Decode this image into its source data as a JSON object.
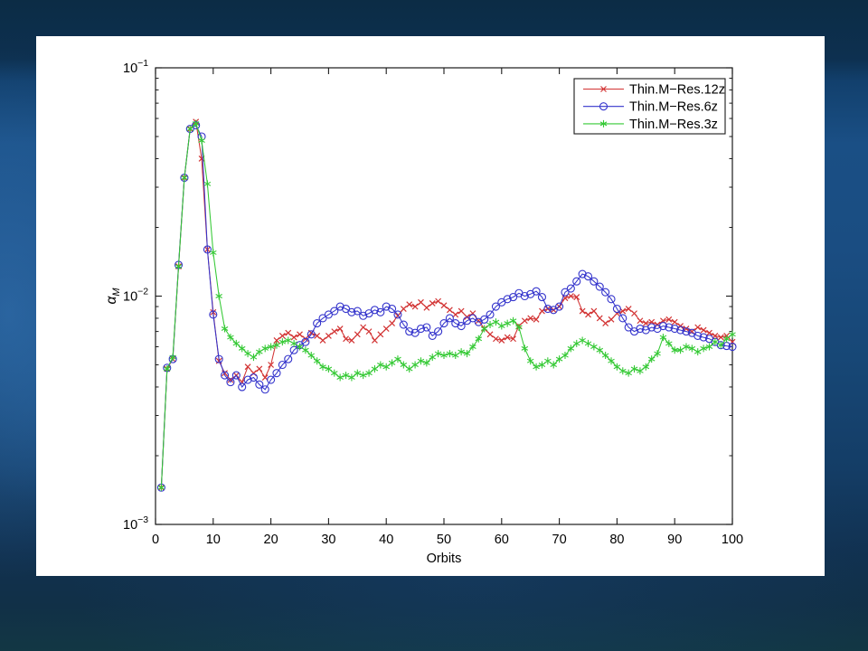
{
  "slide": {
    "background_colors": {
      "top_band": "#0c2c45",
      "upper_mid": "#1a4f85",
      "lower": "#113150",
      "bottom_edge": "#123744",
      "left_glow": "#3e82c8"
    },
    "panel_color": "#ffffff"
  },
  "chart_data": {
    "type": "line",
    "title": "",
    "xlabel": "Orbits",
    "ylabel": "alpha_M",
    "ylabel_letter": "α",
    "ylabel_sub": "M",
    "x_axis": {
      "label": "Orbits",
      "ticks": [
        "0",
        "10",
        "20",
        "30",
        "40",
        "50",
        "60",
        "70",
        "80",
        "90",
        "100"
      ],
      "tick_values": [
        0,
        10,
        20,
        30,
        40,
        50,
        60,
        70,
        80,
        90,
        100
      ]
    },
    "y_axis": {
      "scale": "log",
      "label_base": "10",
      "tick_exponents": [
        "−1",
        "−2",
        "−3"
      ],
      "tick_exponent_values": [
        -1,
        -2,
        -3
      ],
      "minor_ticks_per_decade": [
        2,
        3,
        4,
        5,
        6,
        7,
        8,
        9
      ]
    },
    "xlim": [
      0,
      100
    ],
    "ylim_log10": [
      -3,
      -1
    ],
    "grid": false,
    "legend_position": "top-right",
    "axis_color": "#1a1a1a",
    "value_scale": 0.001,
    "x_start": 1,
    "x_step": 1,
    "n_points": 100,
    "series": [
      {
        "name": "Thin.M−Res.12z",
        "color": "#d23333",
        "marker": "x",
        "values": [
          1.45,
          4.8,
          5.3,
          13.5,
          33,
          54,
          58,
          40,
          16,
          8.5,
          5.2,
          4.6,
          4.3,
          4.5,
          4.2,
          4.9,
          4.6,
          4.8,
          4.4,
          5.0,
          6.4,
          6.7,
          6.9,
          6.6,
          6.8,
          6.5,
          6.9,
          6.7,
          6.4,
          6.7,
          7.0,
          7.2,
          6.5,
          6.4,
          6.8,
          7.3,
          7.0,
          6.4,
          6.8,
          7.2,
          7.6,
          8.2,
          8.8,
          9.2,
          9.0,
          9.4,
          8.9,
          9.3,
          9.5,
          9.1,
          8.7,
          8.3,
          8.6,
          8.1,
          8.4,
          7.8,
          7.2,
          6.8,
          6.5,
          6.4,
          6.6,
          6.5,
          7.4,
          7.8,
          8.0,
          7.9,
          8.6,
          8.8,
          8.7,
          9.0,
          9.8,
          10.0,
          9.9,
          8.6,
          8.3,
          8.6,
          8.0,
          7.6,
          7.9,
          8.4,
          8.6,
          8.8,
          8.4,
          7.8,
          7.6,
          7.7,
          7.5,
          7.8,
          7.9,
          7.7,
          7.4,
          7.2,
          7.0,
          7.3,
          7.1,
          6.9,
          6.7,
          6.6,
          6.7,
          6.3
        ]
      },
      {
        "name": "Thin.M−Res.6z",
        "color": "#3434cc",
        "marker": "o",
        "values": [
          1.45,
          4.85,
          5.3,
          13.7,
          33,
          54,
          56,
          50,
          16,
          8.3,
          5.3,
          4.5,
          4.2,
          4.5,
          4.0,
          4.3,
          4.4,
          4.1,
          3.9,
          4.3,
          4.6,
          5.0,
          5.3,
          5.8,
          6.1,
          6.3,
          6.8,
          7.6,
          8.0,
          8.3,
          8.6,
          9.0,
          8.8,
          8.5,
          8.6,
          8.2,
          8.4,
          8.7,
          8.5,
          9.0,
          8.8,
          8.3,
          7.5,
          7.0,
          6.9,
          7.2,
          7.3,
          6.7,
          7.0,
          7.6,
          8.0,
          7.6,
          7.4,
          7.8,
          8.0,
          7.7,
          7.9,
          8.3,
          9.0,
          9.4,
          9.7,
          9.9,
          10.3,
          10.0,
          10.2,
          10.5,
          9.9,
          8.8,
          8.7,
          9.0,
          10.4,
          10.8,
          11.6,
          12.5,
          12.2,
          11.6,
          11.0,
          10.4,
          9.7,
          8.8,
          8.0,
          7.3,
          7.0,
          7.2,
          7.1,
          7.3,
          7.2,
          7.4,
          7.3,
          7.2,
          7.1,
          7.0,
          6.9,
          6.7,
          6.6,
          6.5,
          6.3,
          6.1,
          6.05,
          6.0
        ]
      },
      {
        "name": "Thin.M−Res.3z",
        "color": "#35c935",
        "marker": "*",
        "values": [
          1.45,
          4.8,
          5.4,
          13.5,
          33,
          54,
          57,
          48,
          31,
          15.5,
          10.0,
          7.2,
          6.6,
          6.2,
          5.9,
          5.6,
          5.4,
          5.7,
          5.9,
          6.0,
          6.1,
          6.3,
          6.4,
          6.2,
          6.0,
          5.8,
          5.5,
          5.2,
          4.9,
          4.8,
          4.6,
          4.4,
          4.5,
          4.4,
          4.6,
          4.5,
          4.6,
          4.8,
          5.0,
          4.9,
          5.1,
          5.3,
          5.0,
          4.8,
          5.0,
          5.2,
          5.1,
          5.4,
          5.6,
          5.5,
          5.6,
          5.5,
          5.7,
          5.6,
          6.0,
          6.5,
          7.2,
          7.5,
          7.7,
          7.4,
          7.6,
          7.8,
          7.3,
          5.9,
          5.2,
          4.9,
          5.0,
          5.2,
          5.0,
          5.3,
          5.5,
          5.9,
          6.2,
          6.4,
          6.2,
          6.0,
          5.8,
          5.5,
          5.2,
          4.9,
          4.7,
          4.6,
          4.8,
          4.7,
          4.9,
          5.3,
          5.6,
          6.6,
          6.2,
          5.8,
          5.8,
          6.0,
          5.9,
          5.7,
          5.9,
          6.0,
          6.3,
          6.1,
          6.5,
          6.8
        ]
      }
    ]
  }
}
